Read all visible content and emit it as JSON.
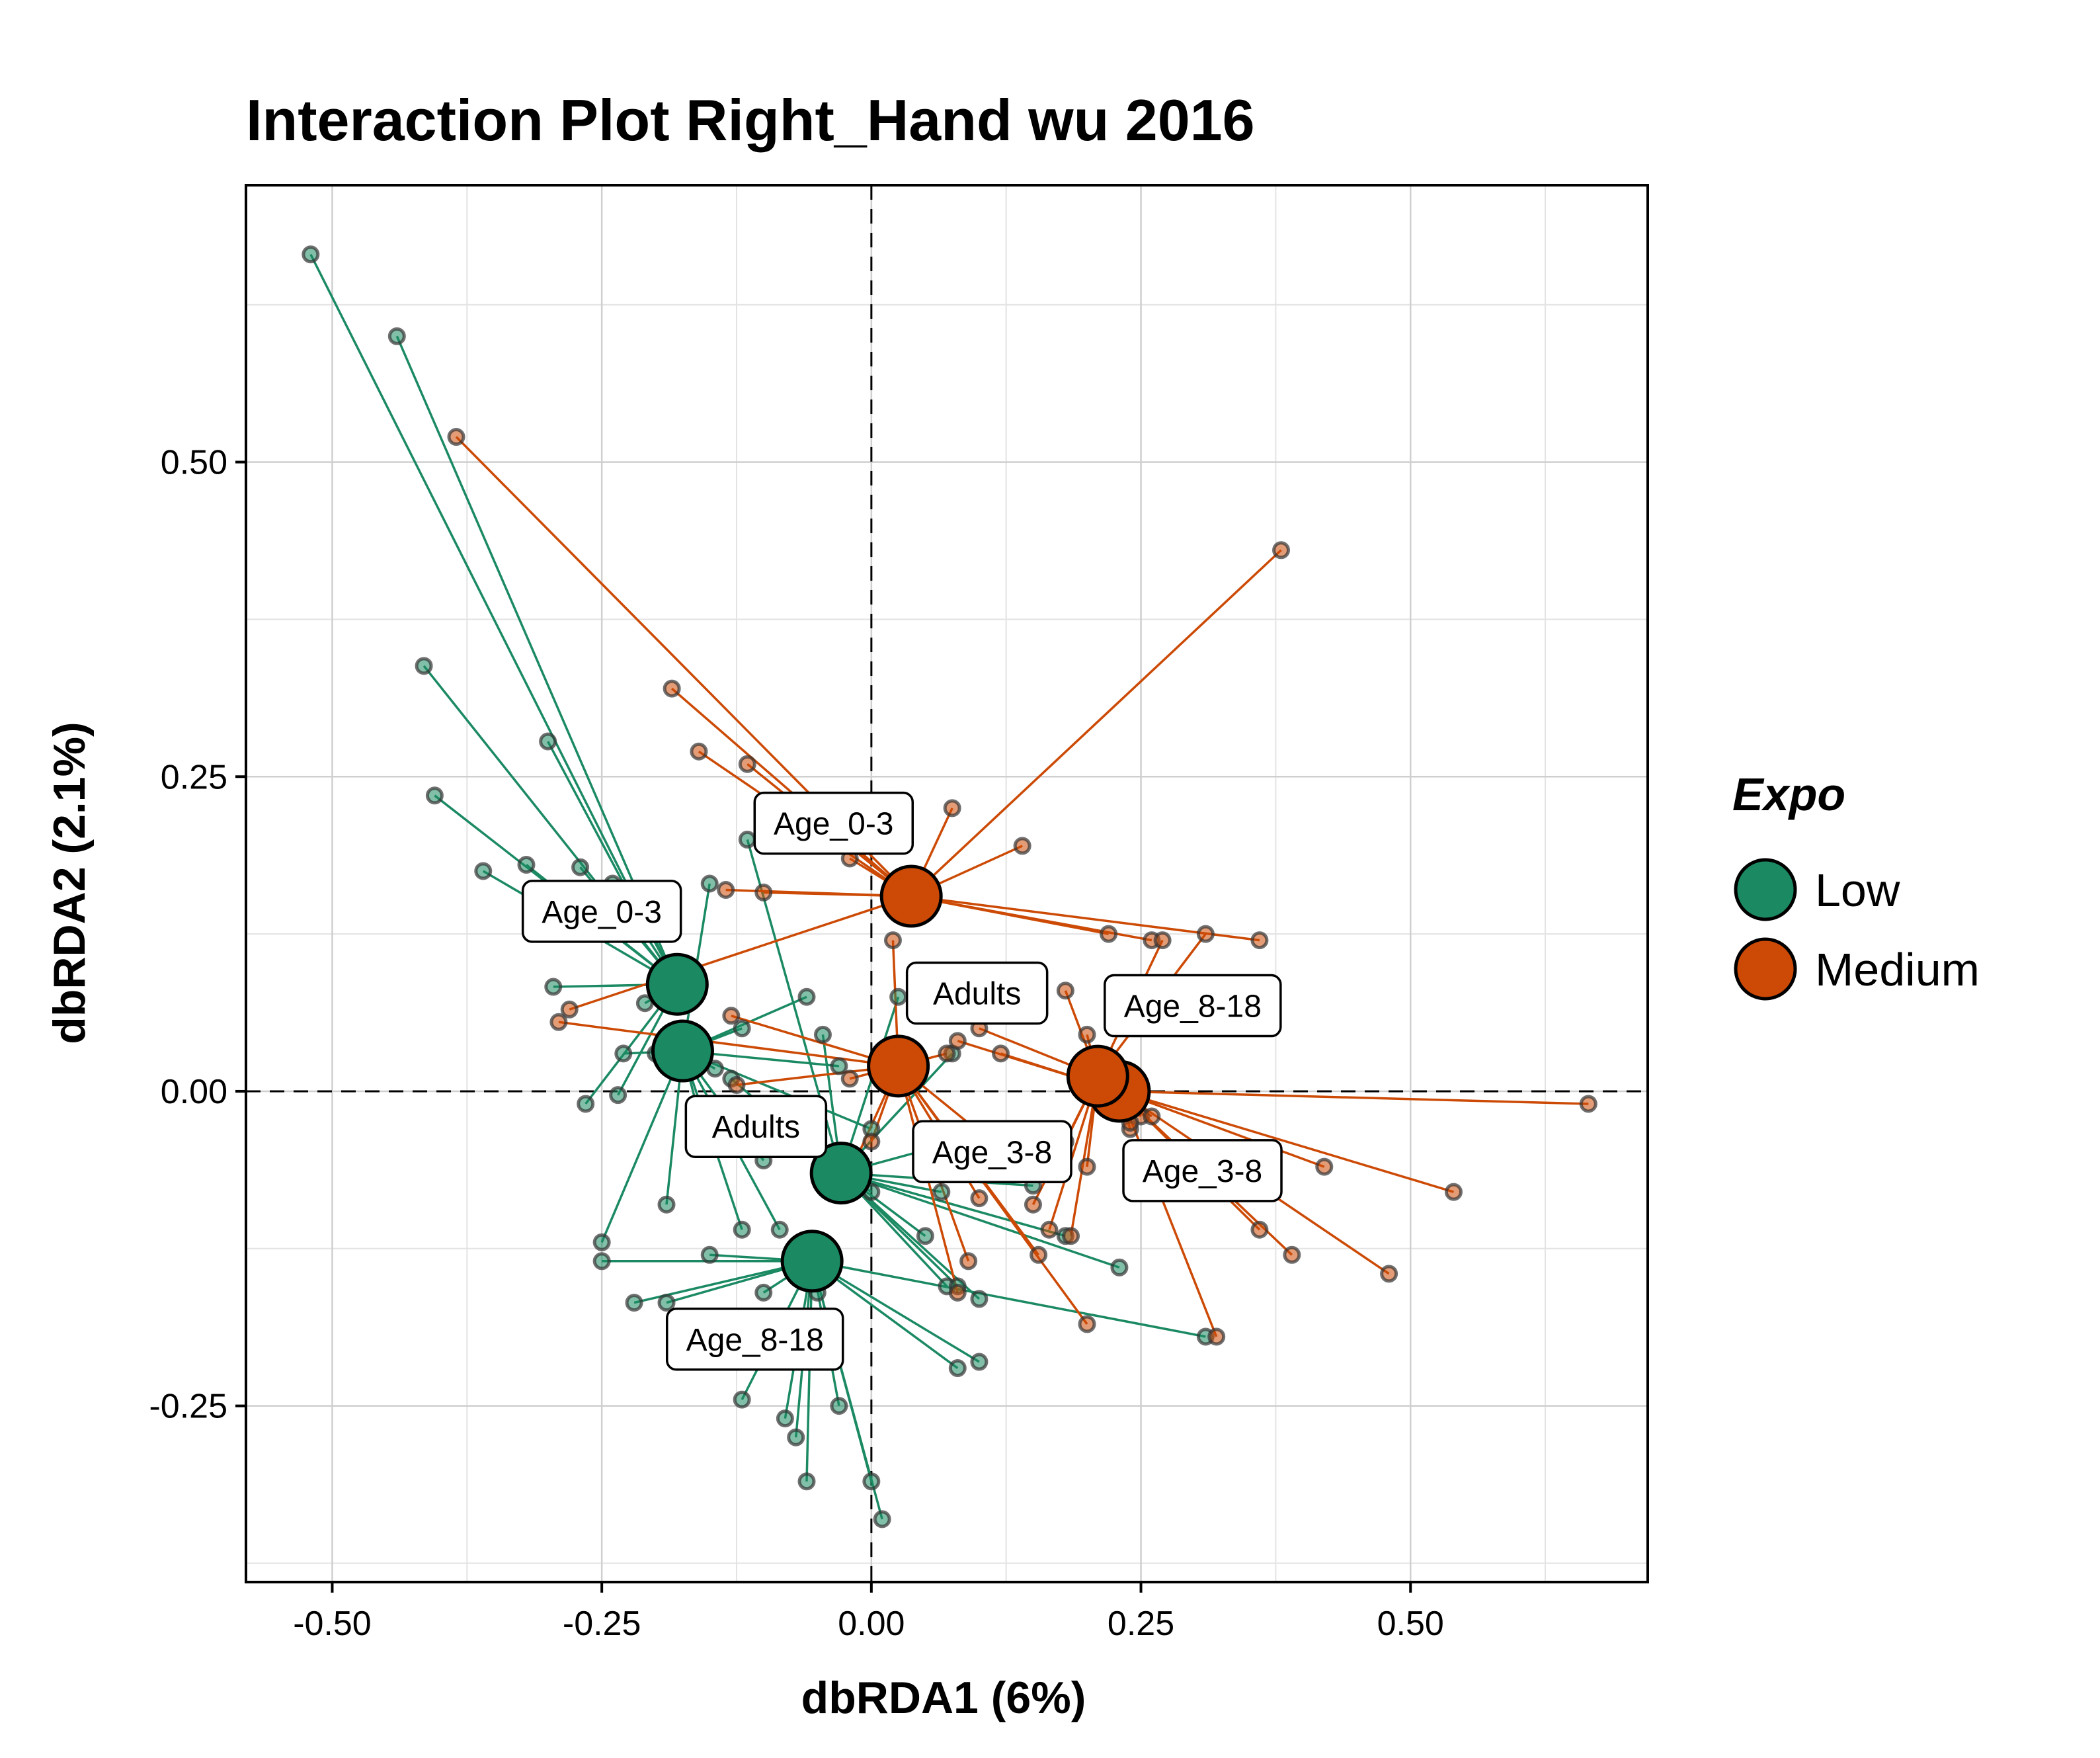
{
  "chart_data": {
    "type": "scatter",
    "title": "Interaction Plot Right_Hand wu 2016",
    "xlabel": "dbRDA1 (6%)",
    "ylabel": "dbRDA2 (2.1%)",
    "xlim": [
      -0.58,
      0.72
    ],
    "ylim": [
      -0.39,
      0.72
    ],
    "x_ticks": [
      -0.5,
      -0.25,
      0.0,
      0.25,
      0.5
    ],
    "x_tick_labels": [
      "-0.50",
      "-0.25",
      "0.00",
      "0.25",
      "0.50"
    ],
    "y_ticks": [
      -0.25,
      0.0,
      0.25,
      0.5
    ],
    "y_tick_labels": [
      "-0.25",
      "0.00",
      "0.25",
      "0.50"
    ],
    "grid": true,
    "reference_lines": {
      "x": 0,
      "y": 0
    },
    "legend": {
      "title": "Expo",
      "placement": "right",
      "entries": [
        {
          "label": "Low",
          "color": "#1b8a63"
        },
        {
          "label": "Medium",
          "color": "#cc4a05"
        }
      ]
    },
    "series": [
      {
        "group": "Low",
        "label": "Age_0-3",
        "color": "#1b8a63",
        "centroid": [
          -0.18,
          0.085
        ],
        "label_pos": [
          -0.25,
          0.143
        ],
        "points": [
          [
            -0.52,
            0.665
          ],
          [
            -0.44,
            0.6
          ],
          [
            -0.415,
            0.338
          ],
          [
            -0.405,
            0.235
          ],
          [
            -0.3,
            0.278
          ],
          [
            -0.32,
            0.18
          ],
          [
            -0.36,
            0.175
          ],
          [
            -0.27,
            0.178
          ],
          [
            -0.24,
            0.165
          ],
          [
            -0.295,
            0.083
          ],
          [
            -0.265,
            -0.01
          ],
          [
            -0.235,
            -0.003
          ],
          [
            -0.19,
            0.1
          ],
          [
            -0.21,
            0.07
          ]
        ]
      },
      {
        "group": "Low",
        "label": "Adults",
        "color": "#1b8a63",
        "centroid": [
          -0.175,
          0.032
        ],
        "label_pos": [
          -0.107,
          -0.028
        ],
        "points": [
          [
            -0.15,
            0.165
          ],
          [
            -0.12,
            0.05
          ],
          [
            -0.145,
            0.018
          ],
          [
            -0.155,
            -0.035
          ],
          [
            -0.1,
            -0.055
          ],
          [
            -0.12,
            -0.11
          ],
          [
            -0.085,
            -0.11
          ],
          [
            -0.06,
            0.075
          ],
          [
            0.0,
            -0.03
          ],
          [
            -0.03,
            0.02
          ],
          [
            -0.19,
            -0.09
          ],
          [
            -0.25,
            -0.12
          ],
          [
            -0.2,
            0.03
          ],
          [
            -0.23,
            0.03
          ]
        ]
      },
      {
        "group": "Low",
        "label": "Age_3-8",
        "color": "#1b8a63",
        "centroid": [
          -0.028,
          -0.065
        ],
        "label_pos": [
          0.112,
          -0.048
        ],
        "points": [
          [
            -0.115,
            0.2
          ],
          [
            -0.13,
            0.01
          ],
          [
            -0.045,
            0.045
          ],
          [
            0.025,
            0.075
          ],
          [
            0.075,
            0.03
          ],
          [
            0.1,
            -0.035
          ],
          [
            0.15,
            -0.075
          ],
          [
            0.18,
            -0.115
          ],
          [
            0.23,
            -0.14
          ],
          [
            0.07,
            -0.155
          ],
          [
            0.1,
            -0.165
          ],
          [
            0.08,
            -0.155
          ],
          [
            0.05,
            -0.115
          ],
          [
            0.065,
            -0.08
          ],
          [
            0.0,
            -0.08
          ]
        ]
      },
      {
        "group": "Low",
        "label": "Age_8-18",
        "color": "#1b8a63",
        "centroid": [
          -0.055,
          -0.135
        ],
        "label_pos": [
          -0.108,
          -0.197
        ],
        "points": [
          [
            -0.25,
            -0.135
          ],
          [
            -0.22,
            -0.168
          ],
          [
            -0.19,
            -0.168
          ],
          [
            -0.15,
            -0.13
          ],
          [
            -0.12,
            -0.245
          ],
          [
            -0.08,
            -0.26
          ],
          [
            -0.07,
            -0.275
          ],
          [
            -0.06,
            -0.31
          ],
          [
            -0.03,
            -0.25
          ],
          [
            0.0,
            -0.31
          ],
          [
            0.01,
            -0.34
          ],
          [
            0.08,
            -0.22
          ],
          [
            0.1,
            -0.215
          ],
          [
            0.31,
            -0.195
          ],
          [
            -0.1,
            -0.16
          ],
          [
            -0.05,
            -0.16
          ]
        ]
      },
      {
        "group": "Medium",
        "label": "Age_0-3",
        "color": "#cc4a05",
        "centroid": [
          0.037,
          0.155
        ],
        "label_pos": [
          -0.035,
          0.213
        ],
        "points": [
          [
            -0.385,
            0.52
          ],
          [
            -0.185,
            0.32
          ],
          [
            -0.16,
            0.27
          ],
          [
            -0.115,
            0.26
          ],
          [
            -0.02,
            0.185
          ],
          [
            0.075,
            0.225
          ],
          [
            -0.1,
            0.158
          ],
          [
            -0.135,
            0.16
          ],
          [
            0.14,
            0.195
          ],
          [
            0.38,
            0.43
          ],
          [
            0.22,
            0.125
          ],
          [
            0.26,
            0.12
          ],
          [
            0.36,
            0.12
          ],
          [
            -0.28,
            0.065
          ]
        ]
      },
      {
        "group": "Medium",
        "label": "Adults",
        "color": "#cc4a05",
        "centroid": [
          0.025,
          0.02
        ],
        "label_pos": [
          0.098,
          0.078
        ],
        "points": [
          [
            -0.13,
            0.06
          ],
          [
            -0.29,
            0.055
          ],
          [
            -0.125,
            0.005
          ],
          [
            -0.02,
            0.01
          ],
          [
            0.02,
            0.12
          ],
          [
            0.07,
            0.03
          ],
          [
            0.14,
            -0.06
          ],
          [
            0.155,
            -0.13
          ],
          [
            0.2,
            -0.185
          ],
          [
            0.09,
            -0.135
          ],
          [
            0.08,
            -0.16
          ],
          [
            0.0,
            -0.04
          ],
          [
            -0.02,
            -0.065
          ],
          [
            0.1,
            -0.085
          ]
        ]
      },
      {
        "group": "Medium",
        "label": "Age_3-8",
        "color": "#cc4a05",
        "centroid": [
          0.23,
          0.0
        ],
        "label_pos": [
          0.307,
          -0.063
        ],
        "points": [
          [
            0.665,
            -0.01
          ],
          [
            0.54,
            -0.08
          ],
          [
            0.48,
            -0.145
          ],
          [
            0.42,
            -0.06
          ],
          [
            0.39,
            -0.13
          ],
          [
            0.36,
            -0.11
          ],
          [
            0.32,
            -0.195
          ],
          [
            0.24,
            -0.03
          ],
          [
            0.12,
            0.03
          ],
          [
            0.08,
            0.04
          ],
          [
            0.25,
            -0.02
          ]
        ]
      },
      {
        "group": "Medium",
        "label": "Age_8-18",
        "color": "#cc4a05",
        "centroid": [
          0.21,
          0.012
        ],
        "label_pos": [
          0.298,
          0.068
        ],
        "points": [
          [
            0.31,
            0.125
          ],
          [
            0.27,
            0.12
          ],
          [
            0.2,
            0.045
          ],
          [
            0.18,
            -0.04
          ],
          [
            0.185,
            -0.115
          ],
          [
            0.2,
            -0.06
          ],
          [
            0.165,
            -0.11
          ],
          [
            0.15,
            -0.09
          ],
          [
            0.18,
            0.08
          ],
          [
            0.1,
            0.05
          ],
          [
            0.24,
            -0.025
          ],
          [
            0.26,
            -0.02
          ]
        ]
      }
    ]
  }
}
